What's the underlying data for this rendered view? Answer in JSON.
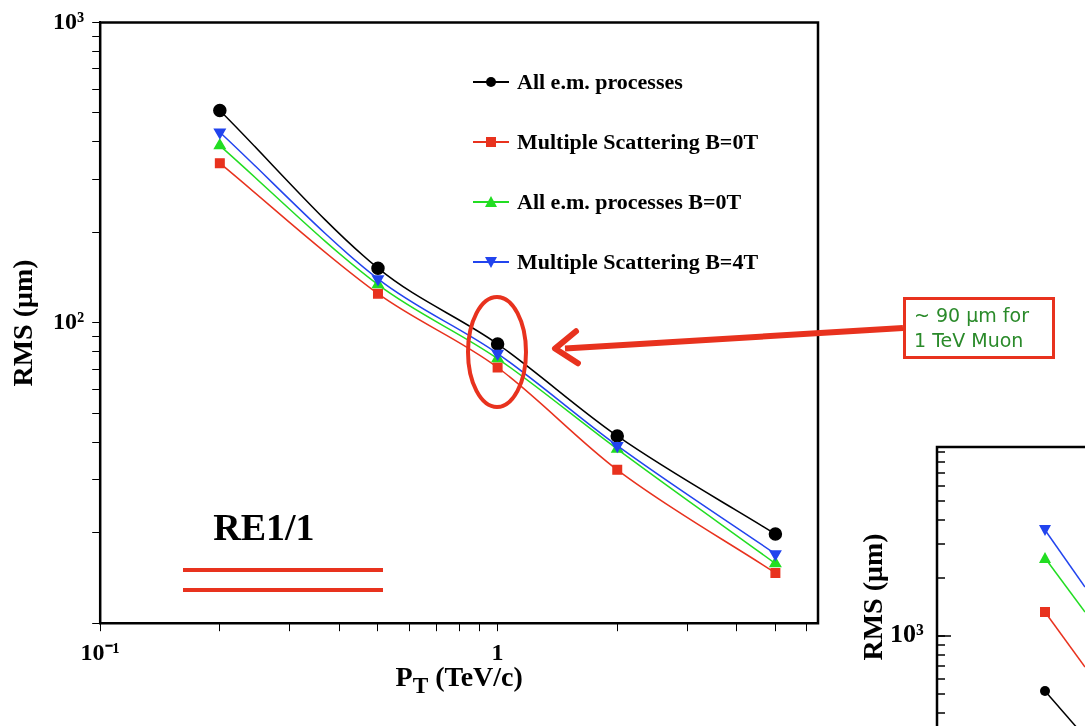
{
  "chart_data": [
    {
      "type": "line",
      "xlabel": "P$_{T}$ (TeV/c)",
      "ylabel": "RMS (μm)",
      "log": "xy",
      "grid": false,
      "legend": "top right",
      "x": [
        0.2,
        0.5,
        1,
        2,
        5
      ],
      "xlim": [
        0.1,
        6.4
      ],
      "xticks": [
        {
          "value": 0.1,
          "label": "10⁻¹"
        },
        {
          "value": 0.2,
          "label": null
        },
        {
          "value": 0.3,
          "label": null
        },
        {
          "value": 0.4,
          "label": null
        },
        {
          "value": 0.5,
          "label": null
        },
        {
          "value": 0.6,
          "label": null
        },
        {
          "value": 0.7,
          "label": null
        },
        {
          "value": 0.8,
          "label": null
        },
        {
          "value": 0.9,
          "label": null
        },
        1,
        {
          "value": 2,
          "label": null
        },
        {
          "value": 3,
          "label": null
        },
        {
          "value": 4,
          "label": null
        },
        {
          "value": 5,
          "label": null
        },
        {
          "value": 6,
          "label": null
        }
      ],
      "ylim": [
        10,
        1000
      ],
      "yticks": [
        {
          "value": 10,
          "label": null
        },
        {
          "value": 20,
          "label": null
        },
        {
          "value": 30,
          "label": null
        },
        {
          "value": 40,
          "label": null
        },
        {
          "value": 50,
          "label": null
        },
        {
          "value": 60,
          "label": null
        },
        {
          "value": 70,
          "label": null
        },
        {
          "value": 80,
          "label": null
        },
        {
          "value": 90,
          "label": null
        },
        {
          "value": 100,
          "label": "10²"
        },
        {
          "value": 200,
          "label": null
        },
        {
          "value": 300,
          "label": null
        },
        {
          "value": 400,
          "label": null
        },
        {
          "value": 500,
          "label": null
        },
        {
          "value": 600,
          "label": null
        },
        {
          "value": 700,
          "label": null
        },
        {
          "value": 800,
          "label": null
        },
        {
          "value": 900,
          "label": null
        },
        {
          "value": 1000,
          "label": "10³"
        }
      ],
      "series": [
        {
          "name": "All e.m. processes",
          "color": "#000000",
          "marker": "circle",
          "values": [
            509,
            152,
            85,
            42,
            19.8
          ]
        },
        {
          "name": "Multiple Scattering B=0T",
          "color": "#e8321e",
          "marker": "square",
          "values": [
            340,
            125,
            71,
            32.4,
            14.7
          ]
        },
        {
          "name": "All e.m. processes  B=0T",
          "color": "#22dd22",
          "marker": "triangle",
          "values": [
            389,
            134,
            76,
            38,
            15.8
          ]
        },
        {
          "name": "Multiple Scattering B=4T",
          "color": "#2244ee",
          "marker": "triangle-down",
          "values": [
            431,
            140,
            79,
            39,
            17
          ]
        }
      ],
      "annotations": [
        "RE1/1",
        "~ 90 μm for 1 TeV Muon"
      ]
    },
    {
      "type": "other",
      "ylabel": "RMS (μm)",
      "annotations": [
        "10³"
      ]
    }
  ]
}
